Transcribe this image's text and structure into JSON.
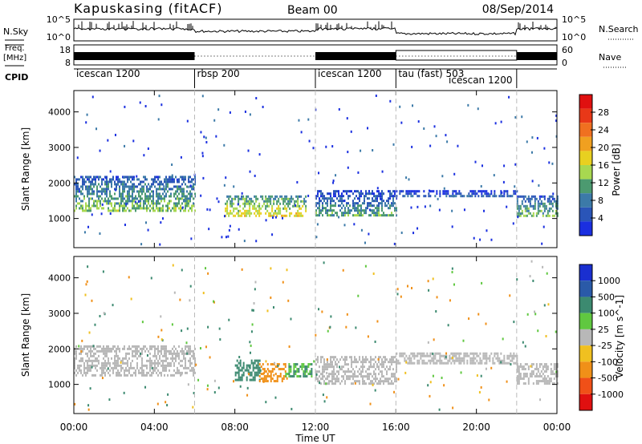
{
  "header": {
    "radar": "Kapuskasing (fitACF)",
    "beam": "Beam 00",
    "date": "08/Sep/2014"
  },
  "panels": {
    "nsky_label": "N.Sky",
    "nsky_ticks": [
      "10^5",
      "10^0"
    ],
    "nsearch_label": "N.Search",
    "freq_label_1": "Freq.",
    "freq_label_2": "[MHz]",
    "freq_ticks": [
      "18",
      "8"
    ],
    "nave_ticks": [
      "60",
      "0"
    ],
    "nave_label": "Nave",
    "cpid_label": "CPID"
  },
  "cpid_segments": [
    {
      "name": "icescan 1200",
      "start": 0,
      "end": 6
    },
    {
      "name": "rbsp 200",
      "start": 6,
      "end": 12
    },
    {
      "name": "icescan 1200",
      "start": 12,
      "end": 16
    },
    {
      "name": "tau (fast) 503",
      "start": 16,
      "end": 22
    },
    {
      "name": "icescan 1200",
      "start": 18.5,
      "end": 22
    }
  ],
  "axes": {
    "ylabel": "Slant Range [km]",
    "xlabel": "Time UT",
    "x_ticks": [
      "00:00",
      "04:00",
      "08:00",
      "12:00",
      "16:00",
      "20:00",
      "00:00"
    ],
    "y_ticks": [
      "1000",
      "2000",
      "3000",
      "4000"
    ]
  },
  "colorbars": {
    "power": {
      "label": "Power [dB]",
      "ticks": [
        "4",
        "8",
        "12",
        "16",
        "20",
        "24",
        "28"
      ],
      "colors": [
        "#1a2fe0",
        "#2a55b8",
        "#3c7aa8",
        "#4c9a70",
        "#a8d850",
        "#e8d020",
        "#f0a020",
        "#f07020",
        "#e83818",
        "#e01010"
      ]
    },
    "velocity": {
      "label": "Velocity [m s^-1]",
      "ticks": [
        "1000",
        "500",
        "100",
        "25",
        "-25",
        "-100",
        "-500",
        "-1000"
      ],
      "colors": [
        "#1a2fd0",
        "#2a5aa8",
        "#3c8a70",
        "#60c840",
        "#b8b8b8",
        "#f0c020",
        "#f09018",
        "#f05018",
        "#e01010"
      ]
    }
  },
  "chart_data": {
    "type": "heatmap",
    "x_range_hours": [
      0,
      24
    ],
    "y_range_km": [
      180,
      4600
    ],
    "mode_boundaries_hours": [
      6,
      12,
      16,
      22
    ],
    "power_panel": {
      "regions": [
        {
          "t": [
            0,
            6
          ],
          "range_km": [
            1250,
            2200
          ],
          "power_db": 10
        },
        {
          "t": [
            7.5,
            11.5
          ],
          "range_km": [
            1100,
            1650
          ],
          "power_db": 14
        },
        {
          "t": [
            12,
            16
          ],
          "range_km": [
            1100,
            1800
          ],
          "power_db": 8
        },
        {
          "t": [
            16,
            22
          ],
          "range_km": [
            1600,
            1800
          ],
          "power_db": 6
        },
        {
          "t": [
            22,
            24
          ],
          "range_km": [
            1050,
            1650
          ],
          "power_db": 10
        }
      ]
    },
    "velocity_panel": {
      "regions": [
        {
          "t": [
            0,
            6
          ],
          "range_km": [
            1250,
            2100
          ],
          "velocity_ms": 0
        },
        {
          "t": [
            8,
            9.2
          ],
          "range_km": [
            1150,
            1700
          ],
          "velocity_ms": 150
        },
        {
          "t": [
            9.2,
            10.5
          ],
          "range_km": [
            1100,
            1600
          ],
          "velocity_ms": -300
        },
        {
          "t": [
            10.5,
            11.8
          ],
          "range_km": [
            1200,
            1600
          ],
          "velocity_ms": 100
        },
        {
          "t": [
            12,
            16
          ],
          "range_km": [
            1000,
            1800
          ],
          "velocity_ms": 0
        },
        {
          "t": [
            16,
            22
          ],
          "range_km": [
            1600,
            1900
          ],
          "velocity_ms": 0
        },
        {
          "t": [
            22,
            24
          ],
          "range_km": [
            1050,
            1600
          ],
          "velocity_ms": 0
        }
      ]
    }
  }
}
